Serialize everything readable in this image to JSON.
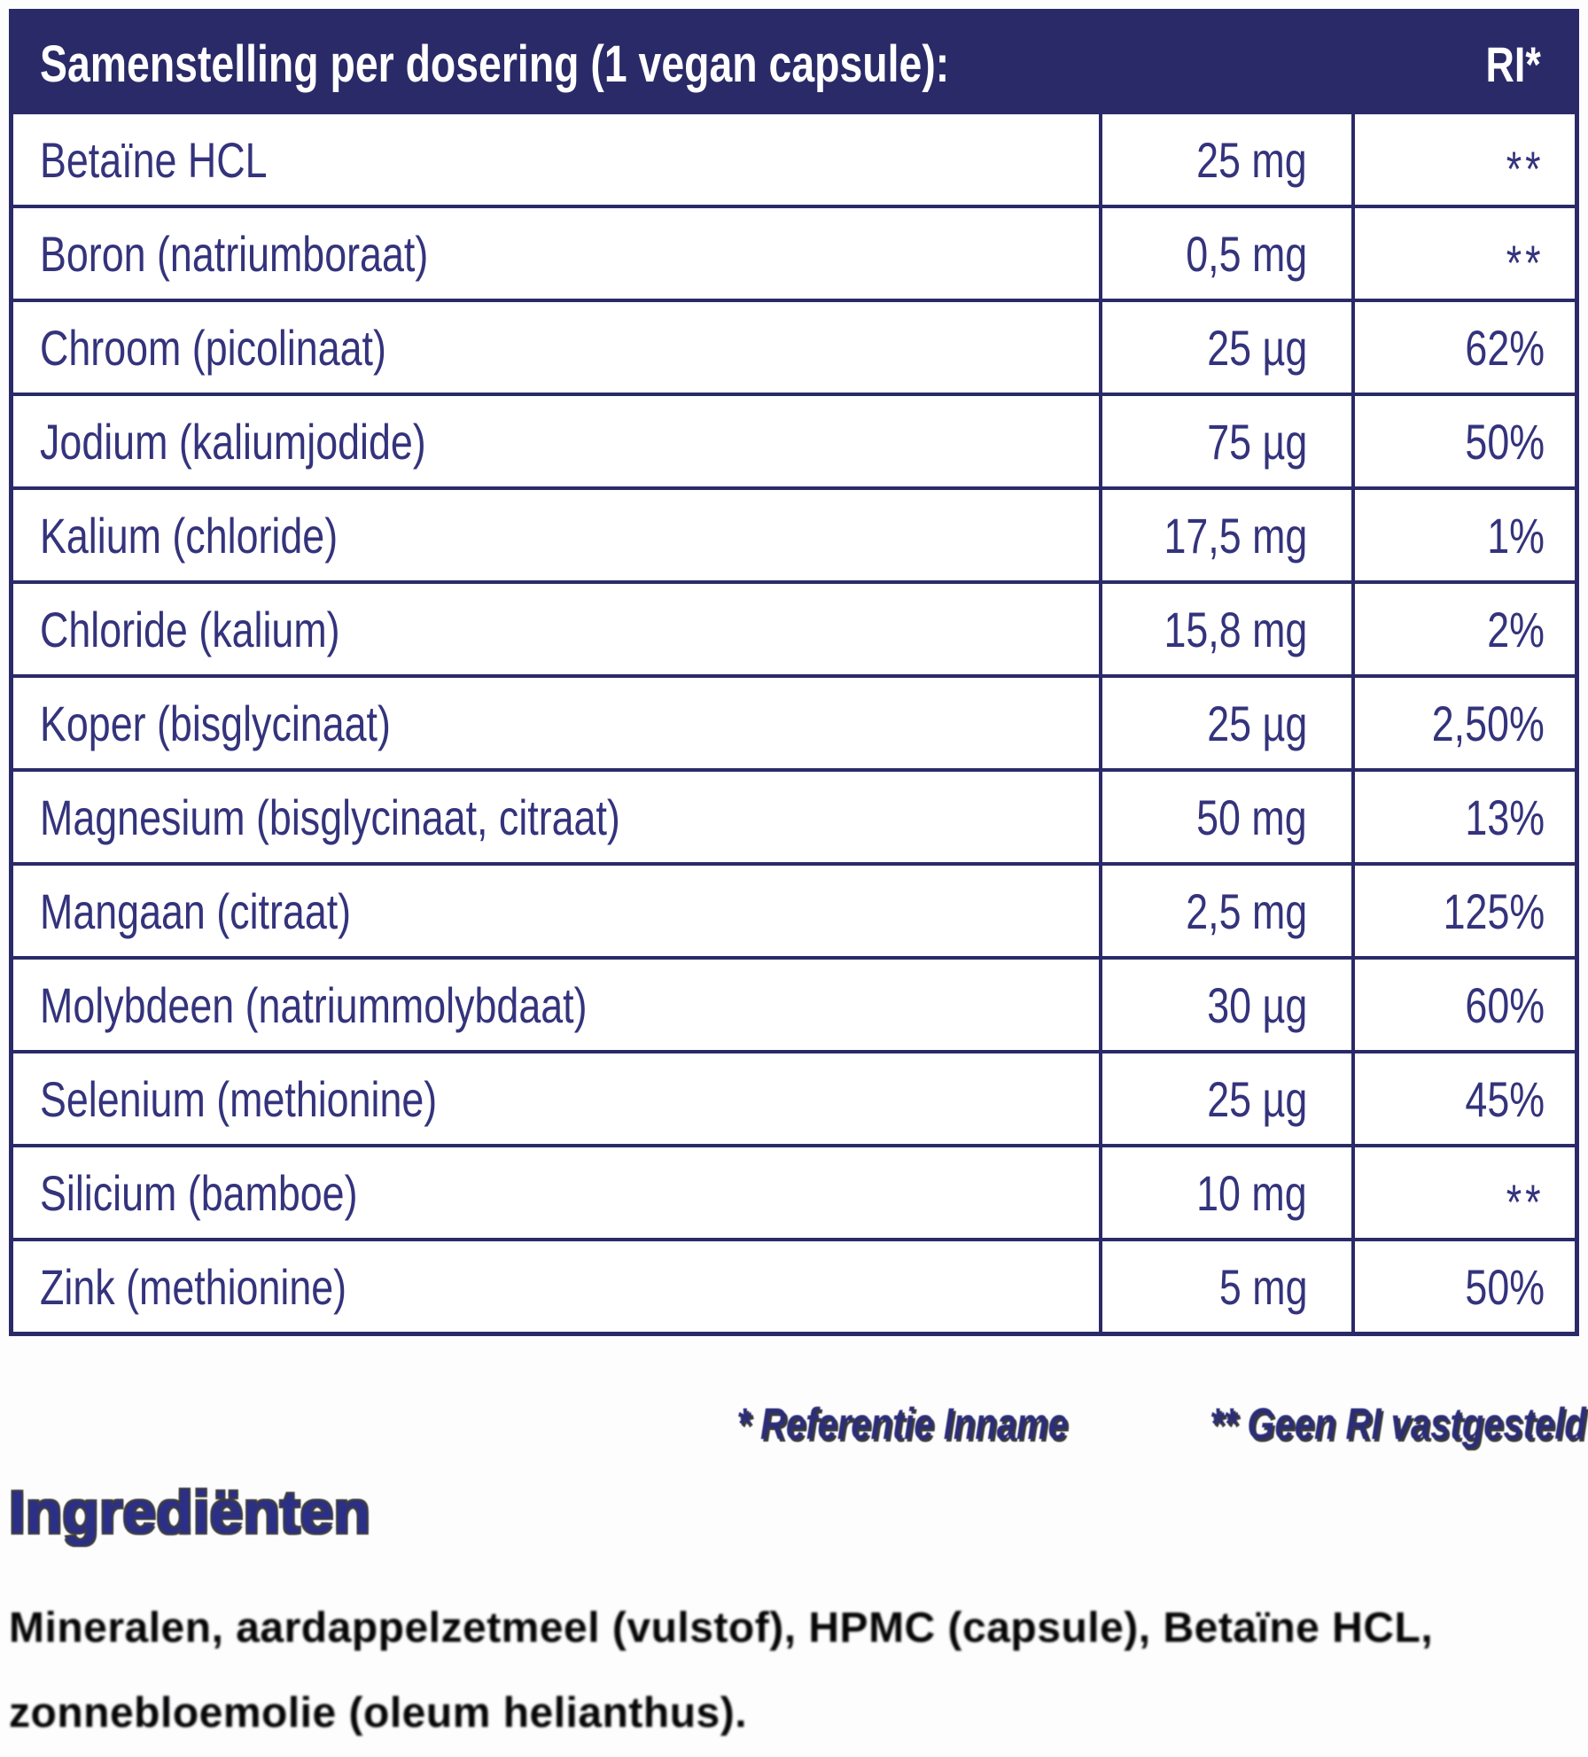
{
  "table": {
    "title": "Samenstelling per dosering (1 vegan capsule):",
    "ri_header": "RI*",
    "rows": [
      {
        "name": "Betaïne HCL",
        "amount": "25 mg",
        "ri": "**"
      },
      {
        "name": "Boron (natriumboraat)",
        "amount": "0,5 mg",
        "ri": "**"
      },
      {
        "name": "Chroom (picolinaat)",
        "amount": "25 µg",
        "ri": "62%"
      },
      {
        "name": "Jodium (kaliumjodide)",
        "amount": "75 µg",
        "ri": "50%"
      },
      {
        "name": "Kalium (chloride)",
        "amount": "17,5 mg",
        "ri": "1%"
      },
      {
        "name": "Chloride (kalium)",
        "amount": "15,8 mg",
        "ri": "2%"
      },
      {
        "name": "Koper (bisglycinaat)",
        "amount": "25 µg",
        "ri": "2,50%"
      },
      {
        "name": "Magnesium (bisglycinaat, citraat)",
        "amount": "50 mg",
        "ri": "13%"
      },
      {
        "name": "Mangaan (citraat)",
        "amount": "2,5 mg",
        "ri": "125%"
      },
      {
        "name": "Molybdeen (natriummolybdaat)",
        "amount": "30 µg",
        "ri": "60%"
      },
      {
        "name": "Selenium (methionine)",
        "amount": "25 µg",
        "ri": "45%"
      },
      {
        "name": "Silicium (bamboe)",
        "amount": "10 mg",
        "ri": "**"
      },
      {
        "name": "Zink (methionine)",
        "amount": "5 mg",
        "ri": "50%"
      }
    ]
  },
  "footnote": {
    "reference": "* Referentie Inname",
    "no_ri": "** Geen RI vastgesteld"
  },
  "ingredients": {
    "heading": "Ingrediënten",
    "lines": [
      "Mineralen, aardappelzetmeel (vulstof), HPMC (capsule), Betaïne HCL,",
      "zonnebloemolie (oleum helianthus)."
    ]
  },
  "colors": {
    "header_background": "#2b2a68",
    "table_border": "#2b2a69",
    "table_text": "#34337c",
    "header_text": "#ffffff",
    "footnote_text": "#2b2d78",
    "ingredients_heading": "#2c2f88",
    "ingredients_text": "#060606"
  }
}
